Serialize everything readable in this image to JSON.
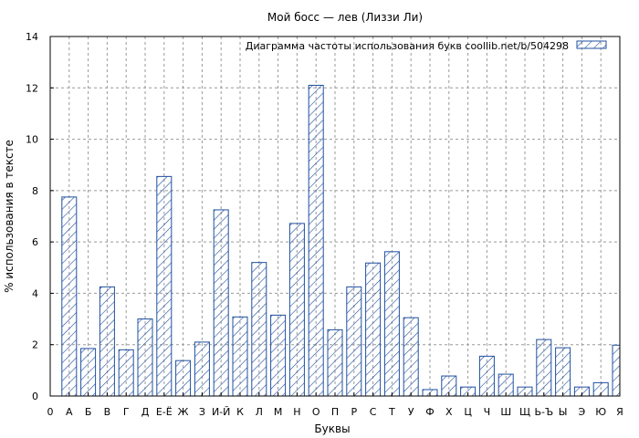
{
  "chart_data": {
    "type": "bar",
    "title": "Мой босс — лев (Лиззи Ли)",
    "xlabel": "Буквы",
    "ylabel": "% использования в тексте",
    "ylim": [
      0,
      14
    ],
    "yticks": [
      0,
      2,
      4,
      6,
      8,
      10,
      12,
      14
    ],
    "grid": true,
    "legend_position": "top-right",
    "series": [
      {
        "name": "Диаграмма частоты использования букв  coollib.net/b/504298",
        "color": "#1f4f9f",
        "pattern": "diagonal-hatch"
      }
    ],
    "categories": [
      "0",
      "А",
      "Б",
      "В",
      "Г",
      "Д",
      "Е-Ё",
      "Ж",
      "З",
      "И-Й",
      "К",
      "Л",
      "М",
      "Н",
      "О",
      "П",
      "Р",
      "С",
      "Т",
      "У",
      "Ф",
      "Х",
      "Ц",
      "Ч",
      "Ш",
      "Щ",
      "Ь-Ъ",
      "Ы",
      "Э",
      "Ю",
      "Я"
    ],
    "values": [
      0,
      7.75,
      1.85,
      4.25,
      1.8,
      3.0,
      8.55,
      1.38,
      2.1,
      7.25,
      3.08,
      5.2,
      3.15,
      6.72,
      12.1,
      2.58,
      4.25,
      5.18,
      5.62,
      3.05,
      0.25,
      0.78,
      0.35,
      1.55,
      0.85,
      0.35,
      2.2,
      1.88,
      0.35,
      0.52,
      1.98
    ]
  }
}
